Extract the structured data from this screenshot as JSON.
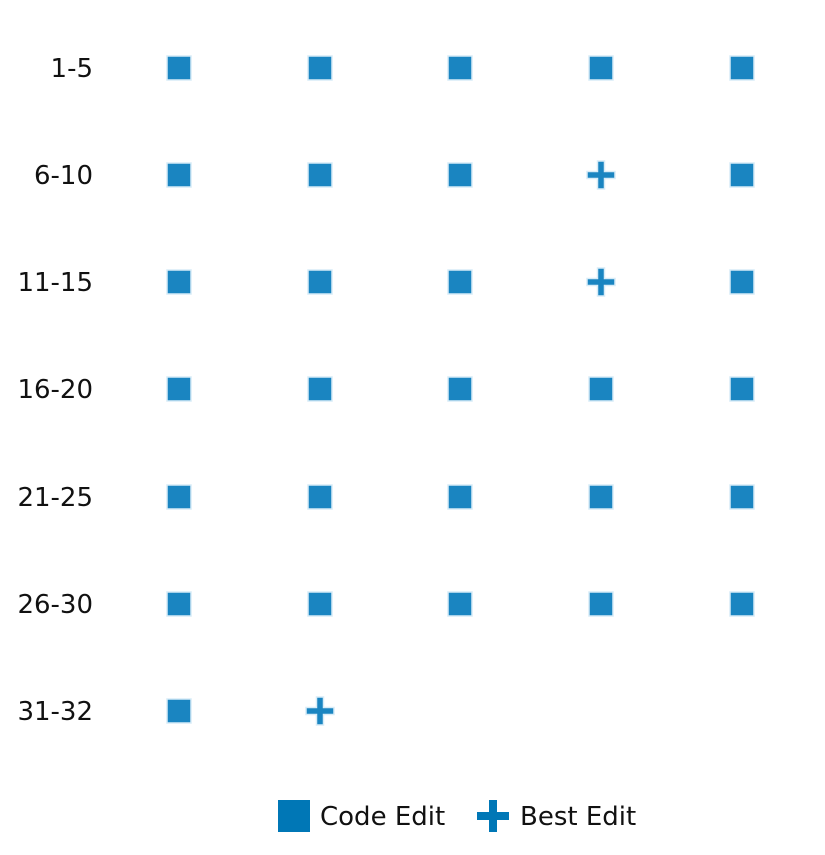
{
  "chart_data": {
    "type": "scatter",
    "title": "",
    "xlabel": "",
    "ylabel": "",
    "grid": false,
    "legend_position": "bottom",
    "rows": [
      {
        "label": "1-5",
        "marks": [
          "square",
          "square",
          "square",
          "square",
          "square"
        ]
      },
      {
        "label": "6-10",
        "marks": [
          "square",
          "square",
          "square",
          "plus",
          "square"
        ]
      },
      {
        "label": "11-15",
        "marks": [
          "square",
          "square",
          "square",
          "plus",
          "square"
        ]
      },
      {
        "label": "16-20",
        "marks": [
          "square",
          "square",
          "square",
          "square",
          "square"
        ]
      },
      {
        "label": "21-25",
        "marks": [
          "square",
          "square",
          "square",
          "square",
          "square"
        ]
      },
      {
        "label": "26-30",
        "marks": [
          "square",
          "square",
          "square",
          "square",
          "square"
        ]
      },
      {
        "label": "31-32",
        "marks": [
          "square",
          "plus"
        ]
      }
    ],
    "series": [
      {
        "name": "Code Edit",
        "marker": "square",
        "color": "#1a85c1"
      },
      {
        "name": "Best Edit",
        "marker": "plus",
        "color": "#1a85c1"
      }
    ]
  },
  "legend": {
    "items": [
      {
        "label": "Code Edit",
        "marker": "square",
        "color": "#0077b6"
      },
      {
        "label": "Best Edit",
        "marker": "plus",
        "color": "#0077b6"
      }
    ]
  },
  "colors": {
    "marker_fill": "#1a85c1",
    "marker_edge": "#d7ecf7",
    "legend_fill": "#0077b6",
    "text": "#111111"
  }
}
